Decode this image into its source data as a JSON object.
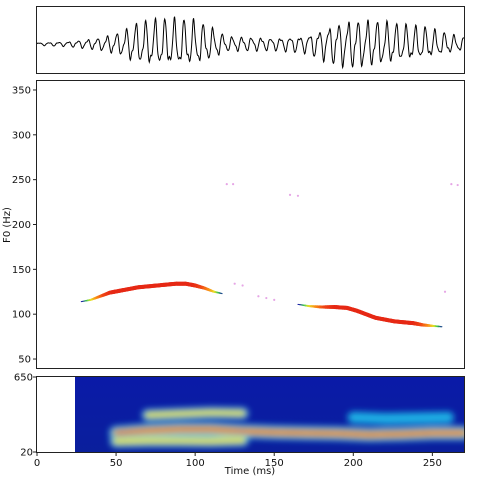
{
  "chart_data": [
    {
      "panel": "waveform",
      "type": "line",
      "xlim": [
        0,
        270
      ],
      "amplitude_envelope": [
        [
          0,
          0.05
        ],
        [
          20,
          0.1
        ],
        [
          40,
          0.25
        ],
        [
          55,
          0.5
        ],
        [
          60,
          0.75
        ],
        [
          70,
          0.9
        ],
        [
          80,
          0.95
        ],
        [
          90,
          0.95
        ],
        [
          100,
          0.9
        ],
        [
          110,
          0.65
        ],
        [
          120,
          0.3
        ],
        [
          150,
          0.25
        ],
        [
          170,
          0.35
        ],
        [
          190,
          0.85
        ],
        [
          200,
          0.95
        ],
        [
          215,
          0.9
        ],
        [
          230,
          0.75
        ],
        [
          245,
          0.65
        ],
        [
          260,
          0.4
        ],
        [
          270,
          0.25
        ]
      ]
    },
    {
      "panel": "pitch",
      "type": "scatter",
      "xlim": [
        0,
        270
      ],
      "ylim": [
        40,
        360
      ],
      "ylabel": "F0 (Hz)",
      "yticks": [
        "50",
        "100",
        "150",
        "200",
        "250",
        "300",
        "350"
      ],
      "series": [
        {
          "x": [
            28,
            34,
            40,
            46,
            52,
            58,
            64,
            70,
            76,
            82,
            88,
            94,
            100,
            106,
            112,
            117
          ],
          "y": [
            114,
            116,
            120,
            124,
            126,
            128,
            130,
            131,
            132,
            133,
            134,
            134,
            132,
            129,
            125,
            123
          ]
        },
        {
          "x": [
            165,
            172,
            180,
            188,
            196,
            202,
            208,
            214,
            220,
            226,
            232,
            238,
            244,
            250,
            256
          ],
          "y": [
            111,
            109,
            108,
            108,
            107,
            104,
            100,
            96,
            94,
            92,
            91,
            90,
            88,
            87,
            86
          ]
        }
      ],
      "faint_points": [
        [
          120,
          245
        ],
        [
          124,
          245
        ],
        [
          160,
          233
        ],
        [
          165,
          232
        ],
        [
          125,
          134
        ],
        [
          130,
          132
        ],
        [
          140,
          120
        ],
        [
          145,
          118
        ],
        [
          150,
          116
        ],
        [
          258,
          125
        ],
        [
          262,
          245
        ],
        [
          266,
          244
        ]
      ]
    },
    {
      "panel": "spectrogram",
      "type": "heatmap",
      "xlim": [
        0,
        270
      ],
      "xlabel": "Time (ms)",
      "xticks": [
        "0",
        "50",
        "100",
        "150",
        "200",
        "250"
      ],
      "ylim": [
        20,
        650
      ],
      "yticks": [
        "20",
        "650"
      ],
      "signal_start_ms": 25,
      "formant_tracks": [
        {
          "x": [
            50,
            70,
            90,
            110,
            130,
            150,
            170,
            190,
            210,
            230,
            250,
            270
          ],
          "y": [
            180,
            200,
            210,
            210,
            195,
            185,
            180,
            175,
            165,
            170,
            180,
            180
          ],
          "level": 1.0
        },
        {
          "x": [
            50,
            70,
            90,
            110,
            130
          ],
          "y": [
            110,
            115,
            115,
            112,
            120
          ],
          "level": 0.75
        },
        {
          "x": [
            70,
            90,
            110,
            130
          ],
          "y": [
            330,
            340,
            350,
            345
          ],
          "level": 0.6
        },
        {
          "x": [
            200,
            220,
            240,
            260
          ],
          "y": [
            310,
            300,
            305,
            310
          ],
          "level": 0.55
        }
      ]
    }
  ]
}
